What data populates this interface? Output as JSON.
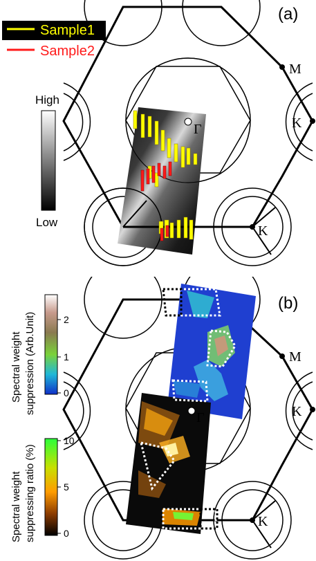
{
  "panel_a": {
    "label": "(a)",
    "legend": [
      {
        "label": "Sample1",
        "color": "#ffff00"
      },
      {
        "label": "Sample2",
        "color": "#ff1a1a"
      }
    ],
    "colorbar": {
      "high_label": "High",
      "low_label": "Low"
    },
    "points": {
      "gamma": "Γ",
      "m": "M",
      "k_right": "K",
      "k_bottom": "K"
    }
  },
  "panel_b": {
    "label": "(b)",
    "colorbar_top": {
      "title_line1": "Spectral weight",
      "title_line2": "suppression (Arb.Unit)",
      "ticks": [
        "2",
        "1",
        "0"
      ]
    },
    "colorbar_bottom": {
      "title_line1": "Spectral weight",
      "title_line2": "suppressing ratio (%)",
      "ticks": [
        "10",
        "5",
        "0"
      ]
    },
    "points": {
      "gamma": "Γ",
      "m": "M",
      "k_right": "K",
      "k_bottom": "K"
    }
  },
  "colors": {
    "legend_background": "#000000",
    "line": "#000000",
    "map_dark": "#111111",
    "map_blue": "#1f3fd0",
    "sample1": "#ffff00",
    "sample2": "#ff1a1a"
  }
}
